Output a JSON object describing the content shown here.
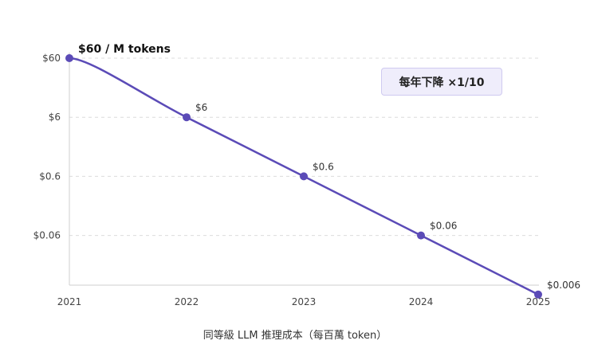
{
  "chart_data": {
    "type": "line",
    "x": [
      "2021",
      "2022",
      "2023",
      "2024",
      "2025"
    ],
    "values": [
      60,
      6,
      0.6,
      0.06,
      0.006
    ],
    "scale": "log",
    "y_ticks": [
      {
        "value": 60,
        "label": "$60"
      },
      {
        "value": 6,
        "label": "$6"
      },
      {
        "value": 0.6,
        "label": "$0.6"
      },
      {
        "value": 0.06,
        "label": "$0.06"
      }
    ],
    "data_labels": [
      "$60 / M tokens",
      "$6",
      "$0.6",
      "$0.06",
      "$0.006"
    ],
    "xlabel": "同等級 LLM 推理成本（每百萬 token）",
    "annotation": "每年下降 ×1/10",
    "grid": "horizontal dashed",
    "line_color": "#5b4bb7",
    "badge_bg": "#efedfb"
  }
}
